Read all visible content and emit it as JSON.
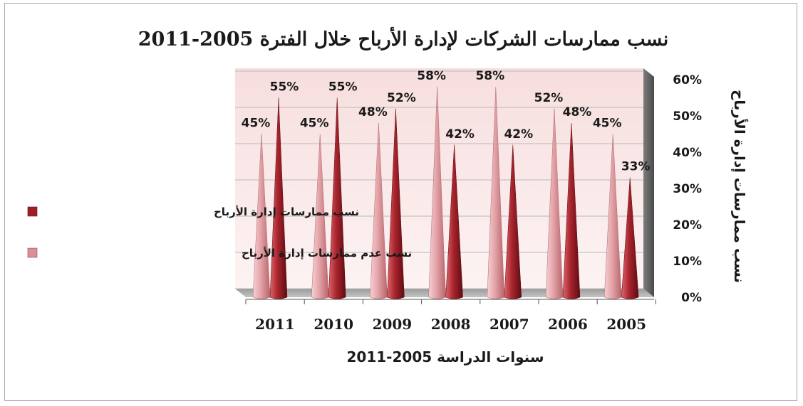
{
  "chart_data": {
    "type": "bar",
    "subtype": "3d-cone",
    "title": "نسب ممارسات الشركات لإدارة الأرباح خلال الفترة 2005-2011",
    "xlabel": "سنوات الدراسة 2005-2011",
    "ylabel": "نسب ممارسات إدارة الأرباح",
    "categories": [
      "2011",
      "2010",
      "2009",
      "2008",
      "2007",
      "2006",
      "2005"
    ],
    "ylim": [
      0,
      60
    ],
    "yticks": [
      "0%",
      "10%",
      "20%",
      "30%",
      "40%",
      "50%",
      "60%"
    ],
    "y_axis_side": "right",
    "grid": true,
    "legend_position": "left",
    "series": [
      {
        "name": "نسب عدم ممارسات إدارة الأرباح",
        "values": [
          45,
          45,
          48,
          58,
          58,
          52,
          45
        ],
        "labels": [
          "45%",
          "45%",
          "48%",
          "58%",
          "58%",
          "52%",
          "45%"
        ],
        "color": "#d98f95"
      },
      {
        "name": "نسب ممارسات إدارة الأرباح",
        "values": [
          55,
          55,
          52,
          42,
          42,
          48,
          33
        ],
        "labels": [
          "55%",
          "55%",
          "52%",
          "42%",
          "42%",
          "48%",
          "33%"
        ],
        "color": "#9e1f27"
      }
    ]
  }
}
